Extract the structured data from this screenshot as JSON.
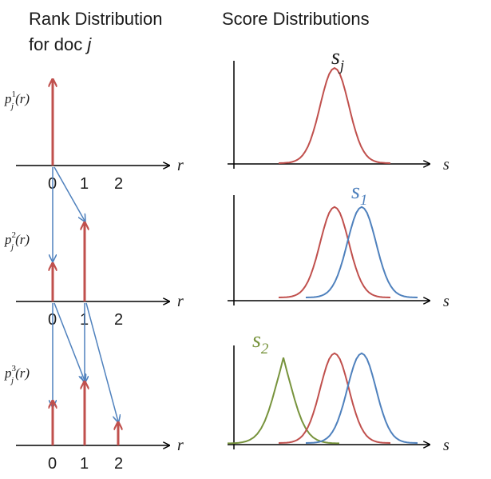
{
  "left_title": {
    "line1": "Rank Distribution",
    "line2_prefix": "for doc ",
    "line2_var": "j"
  },
  "right_title": "Score Distributions",
  "rank_axis": {
    "var": "r",
    "ticks_row1": [
      "0",
      "1",
      "2"
    ],
    "ticks_row2": [
      "0",
      "1",
      "2"
    ],
    "ticks_row3": [
      "0",
      "1",
      "2"
    ]
  },
  "score_axis": {
    "var": "s"
  },
  "prob_labels": {
    "p1": {
      "base": "p",
      "sup": "1",
      "sub": "j",
      "arg": "(r)"
    },
    "p2": {
      "base": "p",
      "sup": "2",
      "sub": "j",
      "arg": "(r)"
    },
    "p3": {
      "base": "p",
      "sup": "3",
      "sub": "j",
      "arg": "(r)"
    }
  },
  "curve_labels": {
    "sj": {
      "base": "s",
      "sub": "j"
    },
    "s1": {
      "base": "s",
      "sub": "1"
    },
    "s2": {
      "base": "s",
      "sub": "2"
    }
  },
  "colors": {
    "red": "#c0504d",
    "blue": "#4f81bd",
    "green": "#77933c",
    "axis": "#000000"
  }
}
